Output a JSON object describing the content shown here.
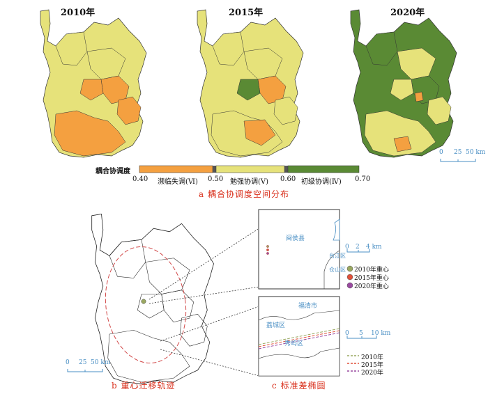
{
  "panel_a": {
    "maps": [
      {
        "year_label": "2010年"
      },
      {
        "year_label": "2015年"
      },
      {
        "year_label": "2020年"
      }
    ],
    "legend": {
      "title": "耦合协调度",
      "ticks": [
        "0.40",
        "0.50",
        "0.60",
        "0.70"
      ],
      "classes": [
        {
          "label": "濒临失调(Ⅵ)",
          "color": "#f4a040"
        },
        {
          "label": "勉强协调(Ⅴ)",
          "color": "#e6e27a"
        },
        {
          "label": "初级协调(Ⅳ)",
          "color": "#5a8a34"
        }
      ]
    },
    "scale_bar": {
      "labels": [
        "0",
        "25",
        "50 km"
      ]
    },
    "caption": "a  耦合协调度空间分布"
  },
  "panel_b": {
    "scale_bar": {
      "labels": [
        "0",
        "25",
        "50 km"
      ]
    },
    "caption": "b  重心迁移轨迹"
  },
  "panel_c_top": {
    "place_labels": [
      "闽侯县",
      "台江区",
      "仓山区"
    ],
    "scale_bar": {
      "labels": [
        "0",
        "2",
        "4 km"
      ]
    },
    "legend": [
      {
        "label": "2010年重心",
        "color": "#9aa860"
      },
      {
        "label": "2015年重心",
        "color": "#e0503a"
      },
      {
        "label": "2020年重心",
        "color": "#9a4aa0"
      }
    ]
  },
  "panel_c_bottom": {
    "place_labels": [
      "福清市",
      "荔城区",
      "秀屿区"
    ],
    "scale_bar": {
      "labels": [
        "0",
        "5",
        "10 km"
      ]
    },
    "legend": [
      {
        "label": "2010年",
        "color": "#9aa860"
      },
      {
        "label": "2015年",
        "color": "#e0503a"
      },
      {
        "label": "2020年",
        "color": "#9a4aa0"
      }
    ],
    "caption": "c  标准差椭圆"
  },
  "colors": {
    "orange": "#f4a040",
    "yellow": "#e6e27a",
    "green": "#5a8a34",
    "caption_red": "#d9301c",
    "label_blue": "#4a8fc4"
  }
}
